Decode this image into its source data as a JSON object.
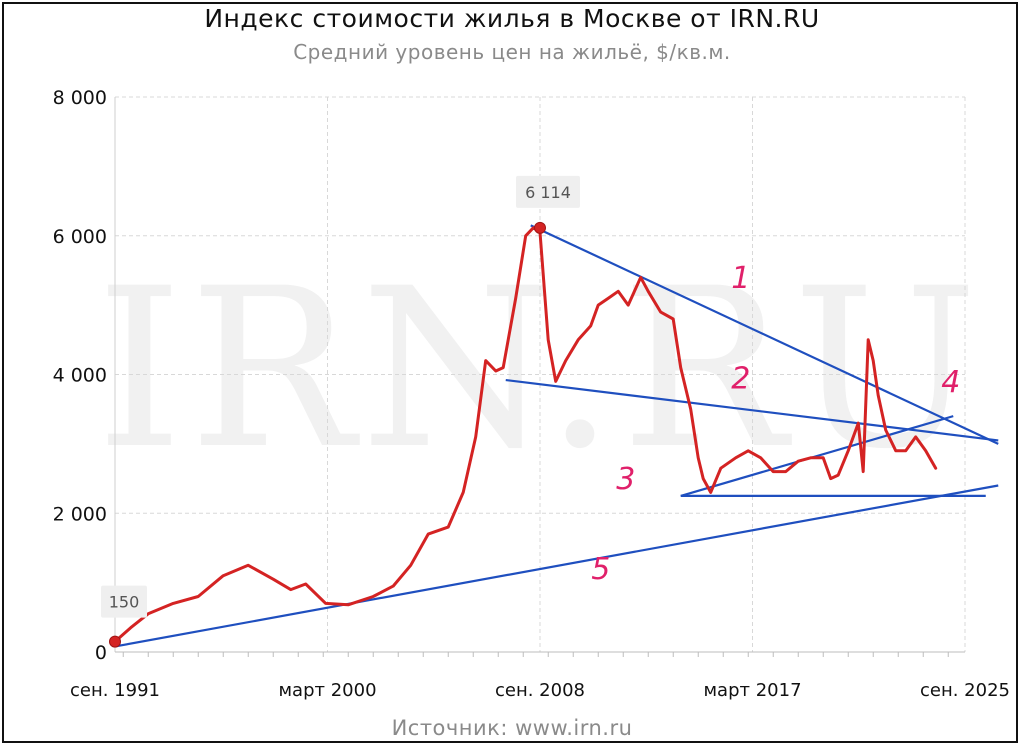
{
  "title": "Индекс стоимости жилья в Москве от IRN.RU",
  "subtitle": "Средний уровень цен на жильё, $/кв.м.",
  "source": "Источник: www.irn.ru",
  "watermark": "IRN.RU",
  "colors": {
    "series": "#d42323",
    "trend": "#1f4fbf",
    "hand": "#e0206a",
    "grid": "#d8d8d8"
  },
  "chart_data": {
    "type": "line",
    "title": "Индекс стоимости жилья в Москве от IRN.RU",
    "subtitle": "Средний уровень цен на жильё, $/кв.м.",
    "ylim": [
      0,
      8000
    ],
    "xlim": [
      1991.67,
      2025.67
    ],
    "y_ticks": [
      0,
      2000,
      4000,
      6000,
      8000
    ],
    "y_tick_labels": [
      "0",
      "2 000",
      "4 000",
      "6 000",
      "8 000"
    ],
    "x_ticks": [
      1991.67,
      2000.17,
      2008.67,
      2017.17,
      2025.67
    ],
    "x_tick_labels": [
      "сен. 1991",
      "март 2000",
      "сен. 2008",
      "март 2017",
      "сен. 2025"
    ],
    "grid": true,
    "series": [
      {
        "x": [
          1991.67,
          1992.3,
          1993,
          1994,
          1995,
          1996,
          1997,
          1998,
          1998.7,
          1999.3,
          2000.1,
          2001,
          2002,
          2002.8,
          2003.5,
          2004.2,
          2005,
          2005.6,
          2006.1,
          2006.5,
          2006.9,
          2007.2,
          2007.7,
          2008.1,
          2008.4,
          2008.67,
          2009,
          2009.3,
          2009.7,
          2010.2,
          2010.7,
          2011,
          2011.4,
          2011.8,
          2012.2,
          2012.7,
          2013,
          2013.5,
          2014,
          2014.3,
          2014.7,
          2015,
          2015.2,
          2015.5,
          2015.9,
          2016.5,
          2017,
          2017.5,
          2018,
          2018.5,
          2019,
          2019.5,
          2020,
          2020.3,
          2020.6,
          2021,
          2021.4,
          2021.6,
          2021.8,
          2022,
          2022.2,
          2022.5,
          2022.9,
          2023.3,
          2023.7,
          2024.1,
          2024.5
        ],
        "values": [
          150,
          350,
          550,
          700,
          800,
          1100,
          1250,
          1050,
          900,
          980,
          700,
          680,
          800,
          950,
          1250,
          1700,
          1800,
          2300,
          3100,
          4200,
          4050,
          4100,
          5100,
          6000,
          6114,
          6050,
          4500,
          3900,
          4200,
          4500,
          4700,
          5000,
          5100,
          5200,
          5000,
          5400,
          5200,
          4900,
          4800,
          4100,
          3500,
          2800,
          2500,
          2300,
          2650,
          2800,
          2900,
          2800,
          2600,
          2600,
          2750,
          2800,
          2800,
          2500,
          2550,
          2900,
          3300,
          2600,
          4500,
          4200,
          3700,
          3200,
          2900,
          2900,
          3100,
          2900,
          2650
        ]
      }
    ],
    "annotations": [
      {
        "x": 1991.67,
        "y": 150,
        "label": "150"
      },
      {
        "x": 2008.67,
        "y": 6114,
        "label": "6 114"
      }
    ],
    "trend_lines": [
      {
        "id": "1",
        "from": [
          2008.3,
          6150
        ],
        "to": [
          2027,
          3000
        ]
      },
      {
        "id": "2",
        "from": [
          2007.3,
          3920
        ],
        "to": [
          2027,
          3050
        ]
      },
      {
        "id": "3",
        "from": [
          2014.3,
          2250
        ],
        "to": [
          2026.5,
          2250
        ]
      },
      {
        "id": "4",
        "from": [
          2014.3,
          2250
        ],
        "to": [
          2025.2,
          3400
        ]
      },
      {
        "id": "5",
        "from": [
          1991.67,
          80
        ],
        "to": [
          2027,
          2400
        ]
      }
    ],
    "hand_labels": [
      {
        "text": "1",
        "x": 2016.7,
        "y": 5250
      },
      {
        "text": "2",
        "x": 2016.7,
        "y": 3800
      },
      {
        "text": "3",
        "x": 2012.1,
        "y": 2350
      },
      {
        "text": "4",
        "x": 2025.1,
        "y": 3750
      },
      {
        "text": "5",
        "x": 2011.1,
        "y": 1050
      }
    ]
  }
}
